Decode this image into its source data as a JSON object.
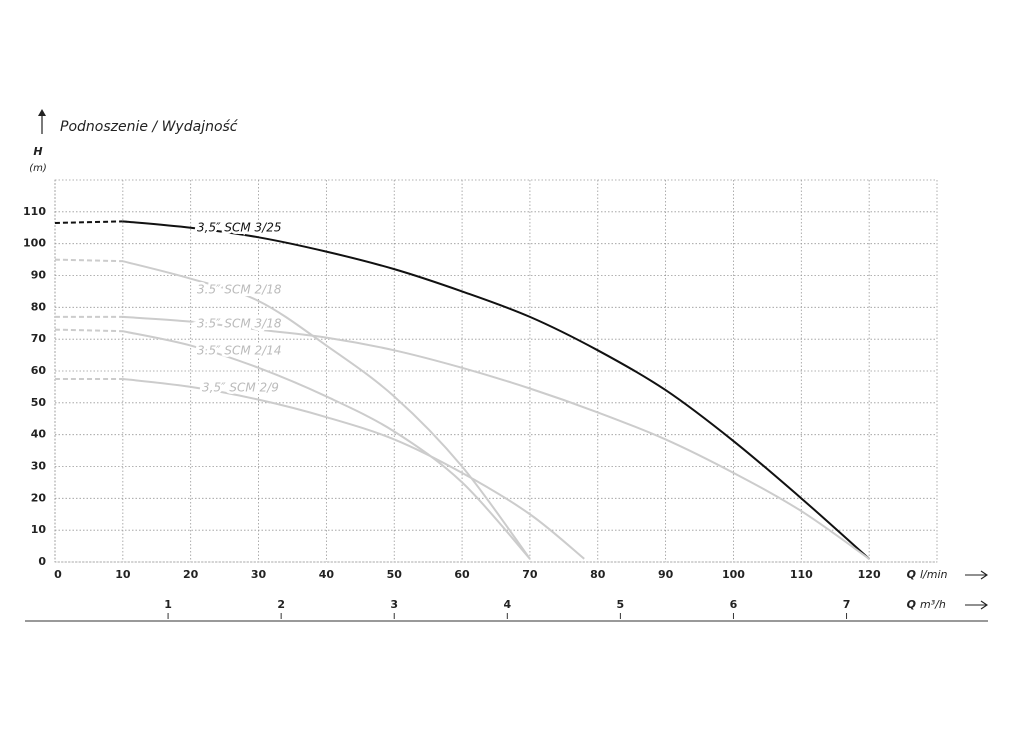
{
  "chart_data": {
    "type": "line",
    "title": "Podnoszenie / Wydajność",
    "ylabel_symbol": "H",
    "ylabel_unit": "(m)",
    "xlabel_symbol": "Q",
    "xlabel_unit": "l/min",
    "x2label_symbol": "Q",
    "x2label_unit": "m³/h",
    "xlim": [
      0,
      130
    ],
    "ylim": [
      0,
      120
    ],
    "x2lim": [
      0,
      7.8
    ],
    "xticks": [
      0,
      10,
      20,
      30,
      40,
      50,
      60,
      70,
      80,
      90,
      100,
      110,
      120
    ],
    "yticks": [
      0,
      10,
      20,
      30,
      40,
      50,
      60,
      70,
      80,
      90,
      100,
      110
    ],
    "x2ticks": [
      1,
      2,
      3,
      4,
      5,
      6,
      7
    ],
    "grid": true,
    "dashed_to": 10,
    "series": [
      {
        "name": "3,5″ SCM 3/25",
        "color": "#111111",
        "x": [
          0,
          10,
          20,
          30,
          40,
          50,
          60,
          70,
          80,
          90,
          100,
          110,
          120
        ],
        "values": [
          106.5,
          107,
          105,
          102,
          97.5,
          92,
          85,
          77,
          66.5,
          54,
          38,
          20,
          1
        ]
      },
      {
        "name": "3.5″ SCM 2/18",
        "color": "#cccccc",
        "x": [
          0,
          10,
          20,
          30,
          40,
          50,
          60,
          70
        ],
        "values": [
          95,
          94.5,
          89,
          82,
          68,
          52,
          30,
          1
        ]
      },
      {
        "name": "3.5″ SCM 3/18",
        "color": "#cccccc",
        "x": [
          0,
          10,
          20,
          30,
          40,
          50,
          60,
          70,
          80,
          90,
          100,
          110,
          120
        ],
        "values": [
          77,
          77,
          75.5,
          73,
          70.5,
          66.5,
          61,
          54.5,
          47,
          38.5,
          28,
          16,
          1
        ]
      },
      {
        "name": "3.5″ SCM 2/14",
        "color": "#cccccc",
        "x": [
          0,
          10,
          20,
          30,
          40,
          50,
          60,
          70
        ],
        "values": [
          73,
          72.5,
          68,
          61,
          52,
          41,
          25,
          1
        ]
      },
      {
        "name": "3,5″ SCM 2/9",
        "color": "#cccccc",
        "x": [
          0,
          10,
          20,
          30,
          40,
          50,
          60,
          70,
          78
        ],
        "values": [
          57.5,
          57.5,
          55,
          51,
          45.5,
          38.5,
          28,
          15,
          1
        ]
      }
    ]
  }
}
